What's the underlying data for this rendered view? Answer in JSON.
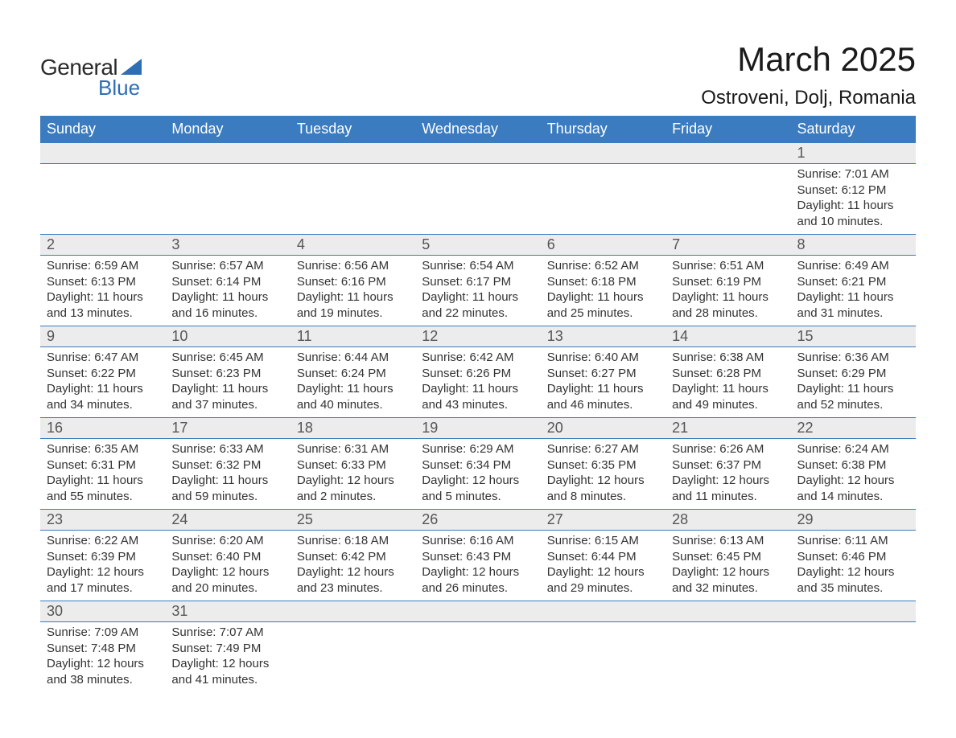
{
  "logo": {
    "text_general": "General",
    "text_blue": "Blue",
    "triangle_color": "#2e6eb5"
  },
  "title": "March 2025",
  "location": "Ostroveni, Dolj, Romania",
  "colors": {
    "header_bg": "#3b7bbf",
    "header_text": "#ffffff",
    "daynum_bg": "#ececec",
    "row_border": "#3b7bbf",
    "body_text": "#333333",
    "page_bg": "#ffffff"
  },
  "typography": {
    "title_fontsize": 42,
    "location_fontsize": 24,
    "weekday_fontsize": 18,
    "daynum_fontsize": 18,
    "detail_fontsize": 15,
    "font_family": "Arial"
  },
  "weekdays": [
    "Sunday",
    "Monday",
    "Tuesday",
    "Wednesday",
    "Thursday",
    "Friday",
    "Saturday"
  ],
  "weeks": [
    [
      null,
      null,
      null,
      null,
      null,
      null,
      {
        "day": "1",
        "sunrise": "Sunrise: 7:01 AM",
        "sunset": "Sunset: 6:12 PM",
        "daylight1": "Daylight: 11 hours",
        "daylight2": "and 10 minutes."
      }
    ],
    [
      {
        "day": "2",
        "sunrise": "Sunrise: 6:59 AM",
        "sunset": "Sunset: 6:13 PM",
        "daylight1": "Daylight: 11 hours",
        "daylight2": "and 13 minutes."
      },
      {
        "day": "3",
        "sunrise": "Sunrise: 6:57 AM",
        "sunset": "Sunset: 6:14 PM",
        "daylight1": "Daylight: 11 hours",
        "daylight2": "and 16 minutes."
      },
      {
        "day": "4",
        "sunrise": "Sunrise: 6:56 AM",
        "sunset": "Sunset: 6:16 PM",
        "daylight1": "Daylight: 11 hours",
        "daylight2": "and 19 minutes."
      },
      {
        "day": "5",
        "sunrise": "Sunrise: 6:54 AM",
        "sunset": "Sunset: 6:17 PM",
        "daylight1": "Daylight: 11 hours",
        "daylight2": "and 22 minutes."
      },
      {
        "day": "6",
        "sunrise": "Sunrise: 6:52 AM",
        "sunset": "Sunset: 6:18 PM",
        "daylight1": "Daylight: 11 hours",
        "daylight2": "and 25 minutes."
      },
      {
        "day": "7",
        "sunrise": "Sunrise: 6:51 AM",
        "sunset": "Sunset: 6:19 PM",
        "daylight1": "Daylight: 11 hours",
        "daylight2": "and 28 minutes."
      },
      {
        "day": "8",
        "sunrise": "Sunrise: 6:49 AM",
        "sunset": "Sunset: 6:21 PM",
        "daylight1": "Daylight: 11 hours",
        "daylight2": "and 31 minutes."
      }
    ],
    [
      {
        "day": "9",
        "sunrise": "Sunrise: 6:47 AM",
        "sunset": "Sunset: 6:22 PM",
        "daylight1": "Daylight: 11 hours",
        "daylight2": "and 34 minutes."
      },
      {
        "day": "10",
        "sunrise": "Sunrise: 6:45 AM",
        "sunset": "Sunset: 6:23 PM",
        "daylight1": "Daylight: 11 hours",
        "daylight2": "and 37 minutes."
      },
      {
        "day": "11",
        "sunrise": "Sunrise: 6:44 AM",
        "sunset": "Sunset: 6:24 PM",
        "daylight1": "Daylight: 11 hours",
        "daylight2": "and 40 minutes."
      },
      {
        "day": "12",
        "sunrise": "Sunrise: 6:42 AM",
        "sunset": "Sunset: 6:26 PM",
        "daylight1": "Daylight: 11 hours",
        "daylight2": "and 43 minutes."
      },
      {
        "day": "13",
        "sunrise": "Sunrise: 6:40 AM",
        "sunset": "Sunset: 6:27 PM",
        "daylight1": "Daylight: 11 hours",
        "daylight2": "and 46 minutes."
      },
      {
        "day": "14",
        "sunrise": "Sunrise: 6:38 AM",
        "sunset": "Sunset: 6:28 PM",
        "daylight1": "Daylight: 11 hours",
        "daylight2": "and 49 minutes."
      },
      {
        "day": "15",
        "sunrise": "Sunrise: 6:36 AM",
        "sunset": "Sunset: 6:29 PM",
        "daylight1": "Daylight: 11 hours",
        "daylight2": "and 52 minutes."
      }
    ],
    [
      {
        "day": "16",
        "sunrise": "Sunrise: 6:35 AM",
        "sunset": "Sunset: 6:31 PM",
        "daylight1": "Daylight: 11 hours",
        "daylight2": "and 55 minutes."
      },
      {
        "day": "17",
        "sunrise": "Sunrise: 6:33 AM",
        "sunset": "Sunset: 6:32 PM",
        "daylight1": "Daylight: 11 hours",
        "daylight2": "and 59 minutes."
      },
      {
        "day": "18",
        "sunrise": "Sunrise: 6:31 AM",
        "sunset": "Sunset: 6:33 PM",
        "daylight1": "Daylight: 12 hours",
        "daylight2": "and 2 minutes."
      },
      {
        "day": "19",
        "sunrise": "Sunrise: 6:29 AM",
        "sunset": "Sunset: 6:34 PM",
        "daylight1": "Daylight: 12 hours",
        "daylight2": "and 5 minutes."
      },
      {
        "day": "20",
        "sunrise": "Sunrise: 6:27 AM",
        "sunset": "Sunset: 6:35 PM",
        "daylight1": "Daylight: 12 hours",
        "daylight2": "and 8 minutes."
      },
      {
        "day": "21",
        "sunrise": "Sunrise: 6:26 AM",
        "sunset": "Sunset: 6:37 PM",
        "daylight1": "Daylight: 12 hours",
        "daylight2": "and 11 minutes."
      },
      {
        "day": "22",
        "sunrise": "Sunrise: 6:24 AM",
        "sunset": "Sunset: 6:38 PM",
        "daylight1": "Daylight: 12 hours",
        "daylight2": "and 14 minutes."
      }
    ],
    [
      {
        "day": "23",
        "sunrise": "Sunrise: 6:22 AM",
        "sunset": "Sunset: 6:39 PM",
        "daylight1": "Daylight: 12 hours",
        "daylight2": "and 17 minutes."
      },
      {
        "day": "24",
        "sunrise": "Sunrise: 6:20 AM",
        "sunset": "Sunset: 6:40 PM",
        "daylight1": "Daylight: 12 hours",
        "daylight2": "and 20 minutes."
      },
      {
        "day": "25",
        "sunrise": "Sunrise: 6:18 AM",
        "sunset": "Sunset: 6:42 PM",
        "daylight1": "Daylight: 12 hours",
        "daylight2": "and 23 minutes."
      },
      {
        "day": "26",
        "sunrise": "Sunrise: 6:16 AM",
        "sunset": "Sunset: 6:43 PM",
        "daylight1": "Daylight: 12 hours",
        "daylight2": "and 26 minutes."
      },
      {
        "day": "27",
        "sunrise": "Sunrise: 6:15 AM",
        "sunset": "Sunset: 6:44 PM",
        "daylight1": "Daylight: 12 hours",
        "daylight2": "and 29 minutes."
      },
      {
        "day": "28",
        "sunrise": "Sunrise: 6:13 AM",
        "sunset": "Sunset: 6:45 PM",
        "daylight1": "Daylight: 12 hours",
        "daylight2": "and 32 minutes."
      },
      {
        "day": "29",
        "sunrise": "Sunrise: 6:11 AM",
        "sunset": "Sunset: 6:46 PM",
        "daylight1": "Daylight: 12 hours",
        "daylight2": "and 35 minutes."
      }
    ],
    [
      {
        "day": "30",
        "sunrise": "Sunrise: 7:09 AM",
        "sunset": "Sunset: 7:48 PM",
        "daylight1": "Daylight: 12 hours",
        "daylight2": "and 38 minutes."
      },
      {
        "day": "31",
        "sunrise": "Sunrise: 7:07 AM",
        "sunset": "Sunset: 7:49 PM",
        "daylight1": "Daylight: 12 hours",
        "daylight2": "and 41 minutes."
      },
      null,
      null,
      null,
      null,
      null
    ]
  ]
}
